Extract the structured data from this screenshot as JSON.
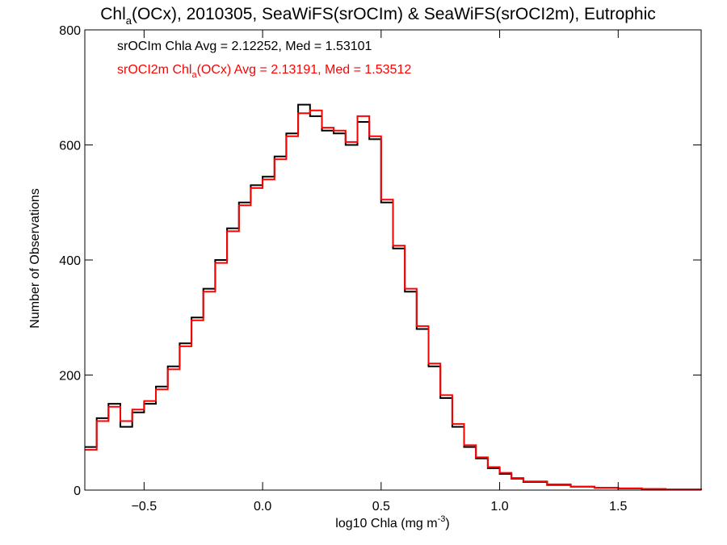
{
  "chart_data": {
    "type": "line",
    "title": {
      "pre": "Chl",
      "sub": "a",
      "post": "(OCx), 2010305, SeaWiFS(srOCIm) & SeaWiFS(srOCI2m), Eutrophic"
    },
    "xlabel": {
      "pre": "log10 Chla (mg m",
      "sup": "-3",
      "post": ")"
    },
    "ylabel": "Number of Observations",
    "xlim": [
      -0.75,
      1.85
    ],
    "ylim": [
      0,
      800
    ],
    "x_ticks": [
      {
        "value": -0.5,
        "label": "−0.5"
      },
      {
        "value": 0.0,
        "label": "0.0"
      },
      {
        "value": 0.5,
        "label": "0.5"
      },
      {
        "value": 1.0,
        "label": "1.0"
      },
      {
        "value": 1.5,
        "label": "1.5"
      }
    ],
    "y_ticks": [
      {
        "value": 0,
        "label": "0"
      },
      {
        "value": 200,
        "label": "200"
      },
      {
        "value": 400,
        "label": "400"
      },
      {
        "value": 600,
        "label": "600"
      },
      {
        "value": 800,
        "label": "800"
      }
    ],
    "legend": [
      {
        "text": "srOCIm Chla Avg = 2.12252, Med = 1.53101",
        "color": "#000000"
      },
      {
        "pre": "srOCI2m Chl",
        "sub": "a",
        "post": "(OCx) Avg = 2.13191, Med = 1.53512",
        "color": "#ff0000"
      }
    ],
    "series": [
      {
        "color": "#000000",
        "x": [
          -0.75,
          -0.7,
          -0.65,
          -0.6,
          -0.55,
          -0.5,
          -0.45,
          -0.4,
          -0.35,
          -0.3,
          -0.25,
          -0.2,
          -0.15,
          -0.1,
          -0.05,
          0.0,
          0.05,
          0.1,
          0.15,
          0.2,
          0.25,
          0.3,
          0.35,
          0.4,
          0.45,
          0.5,
          0.55,
          0.6,
          0.65,
          0.7,
          0.75,
          0.8,
          0.85,
          0.9,
          0.95,
          1.0,
          1.05,
          1.1,
          1.2,
          1.3,
          1.4,
          1.5,
          1.6,
          1.7,
          1.85
        ],
        "y": [
          75,
          125,
          150,
          110,
          135,
          150,
          180,
          215,
          255,
          300,
          350,
          400,
          455,
          500,
          530,
          545,
          580,
          620,
          670,
          650,
          625,
          620,
          600,
          640,
          610,
          500,
          420,
          345,
          280,
          215,
          160,
          110,
          75,
          55,
          38,
          28,
          20,
          14,
          9,
          6,
          4,
          3,
          2,
          1,
          0
        ]
      },
      {
        "color": "#ff0000",
        "x": [
          -0.75,
          -0.7,
          -0.65,
          -0.6,
          -0.55,
          -0.5,
          -0.45,
          -0.4,
          -0.35,
          -0.3,
          -0.25,
          -0.2,
          -0.15,
          -0.1,
          -0.05,
          0.0,
          0.05,
          0.1,
          0.15,
          0.2,
          0.25,
          0.3,
          0.35,
          0.4,
          0.45,
          0.5,
          0.55,
          0.6,
          0.65,
          0.7,
          0.75,
          0.8,
          0.85,
          0.9,
          0.95,
          1.0,
          1.05,
          1.1,
          1.2,
          1.3,
          1.4,
          1.5,
          1.6,
          1.7,
          1.85
        ],
        "y": [
          70,
          120,
          145,
          120,
          140,
          155,
          175,
          210,
          250,
          295,
          345,
          395,
          450,
          495,
          525,
          540,
          575,
          615,
          655,
          660,
          630,
          625,
          605,
          650,
          615,
          505,
          425,
          350,
          285,
          220,
          165,
          115,
          78,
          57,
          40,
          30,
          21,
          15,
          10,
          6,
          4,
          3,
          2,
          1,
          0
        ]
      }
    ]
  }
}
